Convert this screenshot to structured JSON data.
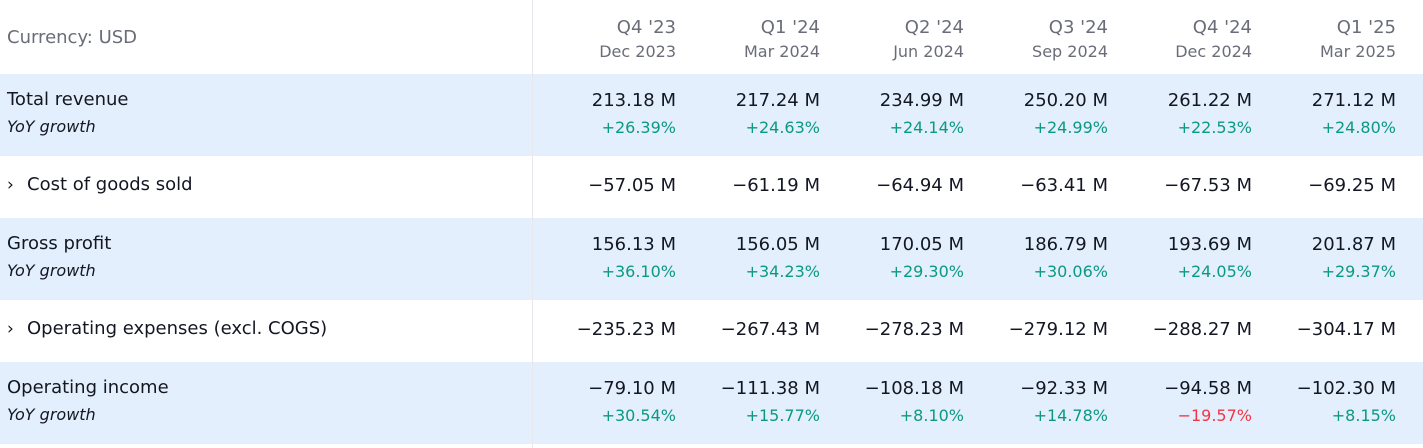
{
  "currency_label": "Currency: USD",
  "periods": [
    {
      "quarter": "Q4 '23",
      "date": "Dec 2023"
    },
    {
      "quarter": "Q1 '24",
      "date": "Mar 2024"
    },
    {
      "quarter": "Q2 '24",
      "date": "Jun 2024"
    },
    {
      "quarter": "Q3 '24",
      "date": "Sep 2024"
    },
    {
      "quarter": "Q4 '24",
      "date": "Dec 2024"
    },
    {
      "quarter": "Q1 '25",
      "date": "Mar 2025"
    }
  ],
  "rows": [
    {
      "label": "Total revenue",
      "expandable": false,
      "values": [
        "213.18 M",
        "217.24 M",
        "234.99 M",
        "250.20 M",
        "261.22 M",
        "271.12 M"
      ],
      "growth_label": "YoY growth",
      "growth": [
        "+26.39%",
        "+24.63%",
        "+24.14%",
        "+24.99%",
        "+22.53%",
        "+24.80%"
      ]
    },
    {
      "label": "Cost of goods sold",
      "expandable": true,
      "chevron": "›",
      "values": [
        "−57.05 M",
        "−61.19 M",
        "−64.94 M",
        "−63.41 M",
        "−67.53 M",
        "−69.25 M"
      ]
    },
    {
      "label": "Gross profit",
      "expandable": false,
      "values": [
        "156.13 M",
        "156.05 M",
        "170.05 M",
        "186.79 M",
        "193.69 M",
        "201.87 M"
      ],
      "growth_label": "YoY growth",
      "growth": [
        "+36.10%",
        "+34.23%",
        "+29.30%",
        "+30.06%",
        "+24.05%",
        "+29.37%"
      ]
    },
    {
      "label": "Operating expenses (excl. COGS)",
      "expandable": true,
      "chevron": "›",
      "values": [
        "−235.23 M",
        "−267.43 M",
        "−278.23 M",
        "−279.12 M",
        "−288.27 M",
        "−304.17 M"
      ]
    },
    {
      "label": "Operating income",
      "expandable": false,
      "values": [
        "−79.10 M",
        "−111.38 M",
        "−108.18 M",
        "−92.33 M",
        "−94.58 M",
        "−102.30 M"
      ],
      "growth_label": "YoY growth",
      "growth": [
        "+30.54%",
        "+15.77%",
        "+8.10%",
        "+14.78%",
        "−19.57%",
        "+8.15%"
      ]
    }
  ],
  "colors": {
    "positive": "#0b9981",
    "negative": "#f23645",
    "shaded_row": "#e3effd",
    "muted_text": "#6a6d78"
  }
}
